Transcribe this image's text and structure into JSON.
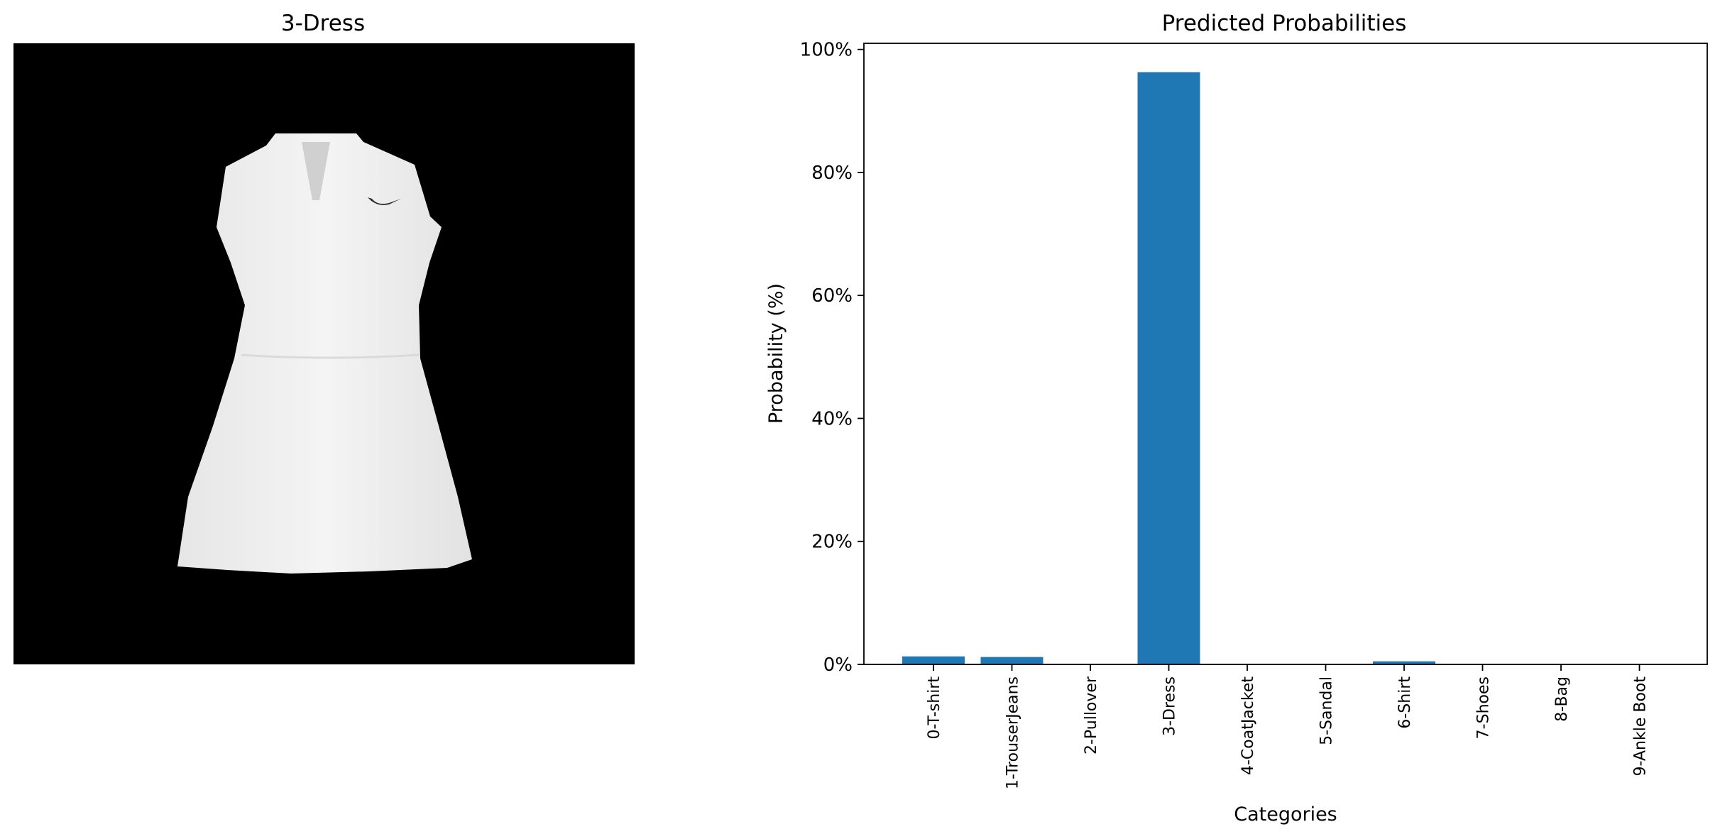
{
  "figure_left": {
    "title": "3-Dress",
    "image": "grayscale-dress-photo-with-nike-swoosh-logo"
  },
  "chart_data": {
    "type": "bar",
    "title": "Predicted Probabilities",
    "xlabel": "Categories",
    "ylabel": "Probability (%)",
    "categories": [
      "0-T-shirt",
      "1-TrouserJeans",
      "2-Pullover",
      "3-Dress",
      "4-CoatJacket",
      "5-Sandal",
      "6-Shirt",
      "7-Shoes",
      "8-Bag",
      "9-Ankle Boot"
    ],
    "values": [
      1.3,
      1.2,
      0.0,
      96.3,
      0.0,
      0.0,
      0.5,
      0.0,
      0.0,
      0.0
    ],
    "ylim": [
      0,
      101
    ],
    "yticks": [
      0,
      20,
      40,
      60,
      80,
      100
    ],
    "ytick_labels": [
      "0%",
      "20%",
      "40%",
      "60%",
      "80%",
      "100%"
    ],
    "grid": false,
    "bar_color": "#1f77b4"
  }
}
